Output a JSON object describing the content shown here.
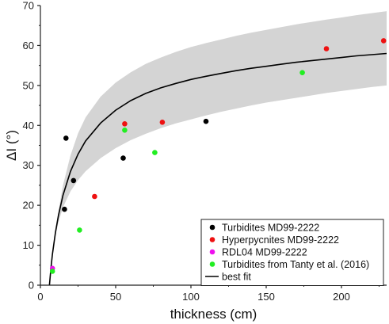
{
  "chart_data": {
    "type": "scatter",
    "xlabel": "thickness (cm)",
    "ylabel": "ΔI (°)",
    "xlim": [
      0,
      230
    ],
    "ylim": [
      0,
      70
    ],
    "xticks": [
      0,
      50,
      100,
      150,
      200
    ],
    "yticks": [
      0,
      10,
      20,
      30,
      40,
      50,
      60,
      70
    ],
    "grid": false,
    "legend_position": "bottom-right",
    "series": [
      {
        "name": "Turbidites MD99-2222",
        "color": "#000000",
        "points": [
          [
            16,
            19
          ],
          [
            17,
            36.8
          ],
          [
            22,
            26.2
          ],
          [
            55,
            31.8
          ],
          [
            110,
            41
          ]
        ]
      },
      {
        "name": "Hyperpycnites MD99-2222",
        "color": "#ee1111",
        "points": [
          [
            36,
            22.2
          ],
          [
            56,
            40.4
          ],
          [
            81,
            40.8
          ],
          [
            190,
            59.2
          ],
          [
            228,
            61.2
          ]
        ]
      },
      {
        "name": "RDL04 MD99-2222",
        "color": "#ee11ee",
        "points": [
          [
            8,
            4.2
          ]
        ]
      },
      {
        "name": "Turbidites from Tanty et al. (2016)",
        "color": "#22ee22",
        "points": [
          [
            26,
            13.8
          ],
          [
            56,
            38.8
          ],
          [
            76,
            33.2
          ],
          [
            174,
            53.2
          ],
          [
            8,
            3.5
          ]
        ]
      }
    ],
    "fit": {
      "name": "best fit",
      "color": "#000000",
      "x": [
        6,
        7,
        8,
        10,
        12,
        15,
        20,
        25,
        30,
        40,
        50,
        60,
        70,
        80,
        90,
        100,
        110,
        120,
        130,
        140,
        150,
        160,
        170,
        180,
        190,
        200,
        210,
        220,
        230
      ],
      "y": [
        0,
        4.3,
        7.8,
        13.2,
        17.5,
        22.5,
        28.5,
        32.8,
        36.1,
        40.6,
        43.8,
        46.2,
        48,
        49.4,
        50.5,
        51.5,
        52.3,
        53,
        53.7,
        54.3,
        54.8,
        55.3,
        55.8,
        56.2,
        56.6,
        57,
        57.4,
        57.7,
        58
      ],
      "band_upper": [
        0,
        4.3,
        8,
        13.5,
        18.5,
        25,
        32.5,
        38,
        42,
        47.2,
        50.7,
        53.3,
        55.4,
        57,
        58.4,
        59.6,
        60.6,
        61.5,
        62.4,
        63.2,
        63.9,
        64.6,
        65.3,
        65.9,
        66.5,
        67,
        67.6,
        68.1,
        68.6
      ],
      "band_lower": [
        0,
        4.3,
        7.5,
        12.3,
        15.8,
        19.5,
        23.5,
        26.3,
        28.5,
        31.8,
        34.3,
        36.3,
        37.9,
        39.3,
        40.5,
        41.5,
        42.5,
        43.4,
        44.2,
        45,
        45.7,
        46.3,
        46.9,
        47.5,
        48.1,
        48.6,
        49.1,
        49.6,
        50
      ]
    }
  }
}
